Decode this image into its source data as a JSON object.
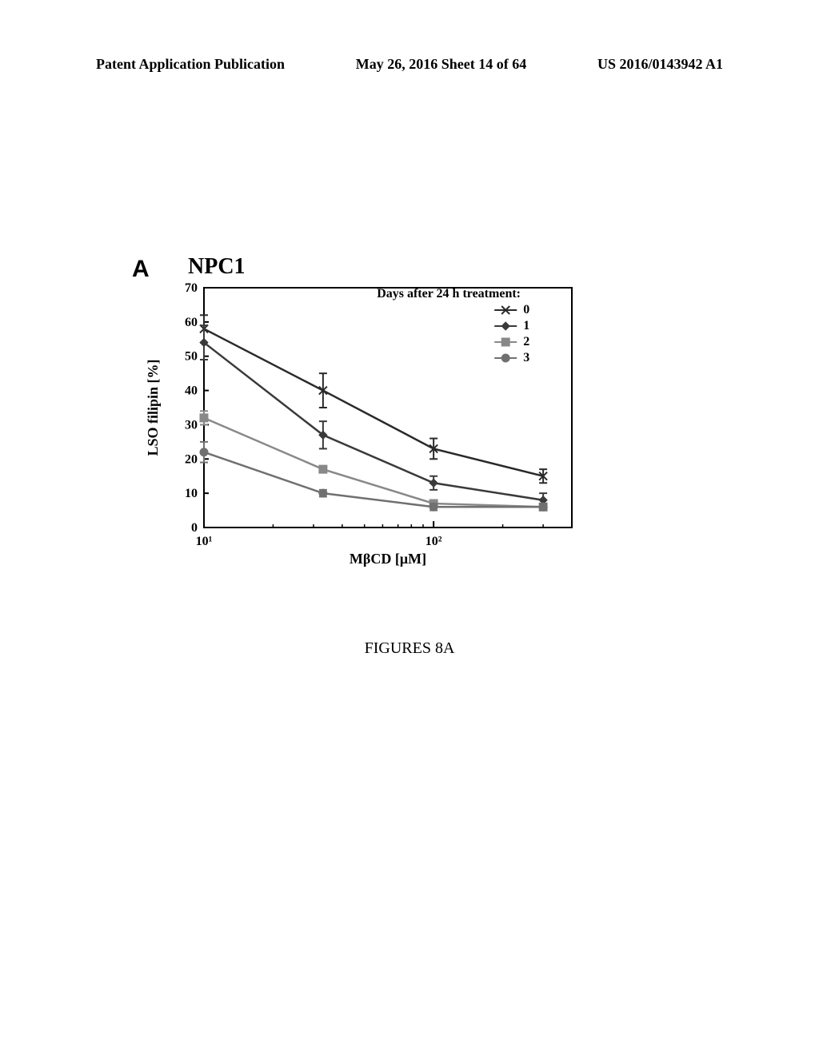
{
  "header": {
    "left": "Patent Application Publication",
    "center": "May 26, 2016  Sheet 14 of 64",
    "right": "US 2016/0143942 A1"
  },
  "figure": {
    "panel_label": "A",
    "title": "NPC1",
    "caption": "FIGURES 8A"
  },
  "chart": {
    "type": "line",
    "ylabel": "LSO filipin [%]",
    "xlabel": "MβCD [μM]",
    "ylim": [
      0,
      70
    ],
    "ytick_step": 10,
    "xlim": [
      10,
      400
    ],
    "xticks": [
      10,
      100
    ],
    "xtick_labels": [
      "10¹",
      "10²"
    ],
    "xscale": "log",
    "background_color": "#ffffff",
    "axis_color": "#000000",
    "title_fontsize": 28,
    "label_fontsize": 18,
    "tick_fontsize": 16,
    "line_width": 2.5,
    "legend": {
      "title": "Days after 24 h treatment:",
      "position": "top-right",
      "fontsize": 16,
      "items": [
        {
          "label": "0",
          "marker": "x",
          "color": "#2a2a2a"
        },
        {
          "label": "1",
          "marker": "diamond",
          "color": "#3a3a3a"
        },
        {
          "label": "2",
          "marker": "square",
          "color": "#888888"
        },
        {
          "label": "3",
          "marker": "circle",
          "color": "#707070"
        }
      ]
    },
    "x_values": [
      10,
      33,
      100,
      300
    ],
    "series": [
      {
        "name": "0",
        "color": "#2a2a2a",
        "y": [
          58,
          40,
          23,
          15
        ],
        "err": [
          4,
          5,
          3,
          2
        ]
      },
      {
        "name": "1",
        "color": "#3a3a3a",
        "y": [
          54,
          27,
          13,
          8
        ],
        "err": [
          5,
          4,
          2,
          2
        ]
      },
      {
        "name": "2",
        "color": "#888888",
        "y": [
          32,
          17,
          7,
          6
        ],
        "err": [
          2,
          1,
          1,
          1
        ]
      },
      {
        "name": "3",
        "color": "#707070",
        "y": [
          22,
          10,
          6,
          6
        ],
        "err": [
          3,
          1,
          1,
          1
        ]
      }
    ]
  }
}
